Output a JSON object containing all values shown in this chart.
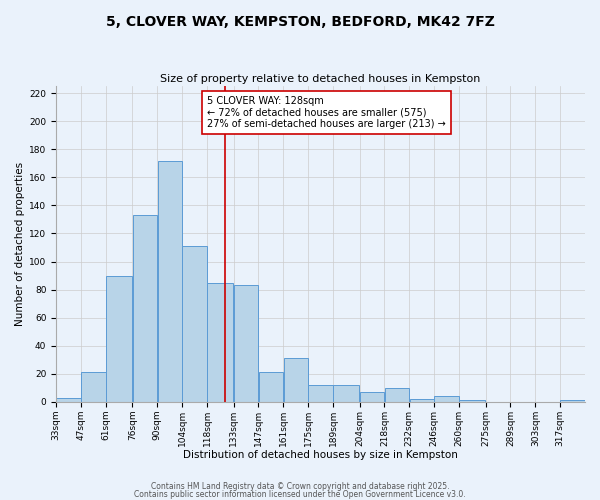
{
  "title": "5, CLOVER WAY, KEMPSTON, BEDFORD, MK42 7FZ",
  "subtitle": "Size of property relative to detached houses in Kempston",
  "xlabel": "Distribution of detached houses by size in Kempston",
  "ylabel": "Number of detached properties",
  "bar_labels": [
    "33sqm",
    "47sqm",
    "61sqm",
    "76sqm",
    "90sqm",
    "104sqm",
    "118sqm",
    "133sqm",
    "147sqm",
    "161sqm",
    "175sqm",
    "189sqm",
    "204sqm",
    "218sqm",
    "232sqm",
    "246sqm",
    "260sqm",
    "275sqm",
    "289sqm",
    "303sqm",
    "317sqm"
  ],
  "bar_values": [
    3,
    21,
    90,
    133,
    172,
    111,
    85,
    83,
    21,
    31,
    12,
    12,
    7,
    10,
    2,
    4,
    1,
    0,
    0,
    0,
    1
  ],
  "bin_edges": [
    33,
    47,
    61,
    76,
    90,
    104,
    118,
    133,
    147,
    161,
    175,
    189,
    204,
    218,
    232,
    246,
    260,
    275,
    289,
    303,
    317,
    331
  ],
  "bar_color": "#b8d4e8",
  "bar_edge_color": "#5b9bd5",
  "vline_x": 128,
  "vline_color": "#cc0000",
  "annotation_line1": "5 CLOVER WAY: 128sqm",
  "annotation_line2": "← 72% of detached houses are smaller (575)",
  "annotation_line3": "27% of semi-detached houses are larger (213) →",
  "annotation_box_color": "#ffffff",
  "annotation_box_edge": "#cc0000",
  "ylim": [
    0,
    225
  ],
  "yticks": [
    0,
    20,
    40,
    60,
    80,
    100,
    120,
    140,
    160,
    180,
    200,
    220
  ],
  "background_color": "#eaf2fb",
  "plot_bg_color": "#eaf2fb",
  "footer1": "Contains HM Land Registry data © Crown copyright and database right 2025.",
  "footer2": "Contains public sector information licensed under the Open Government Licence v3.0.",
  "title_fontsize": 10,
  "subtitle_fontsize": 8,
  "axis_label_fontsize": 7.5,
  "tick_fontsize": 6.5,
  "annotation_fontsize": 7
}
